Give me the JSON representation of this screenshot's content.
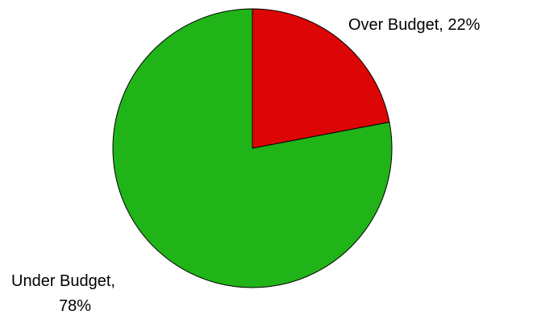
{
  "chart_data": {
    "type": "pie",
    "slices": [
      {
        "label": "Over Budget",
        "value": 22,
        "unit": "%",
        "color": "#dd0606"
      },
      {
        "label": "Under Budget",
        "value": 78,
        "unit": "%",
        "color": "#21b418"
      }
    ],
    "start": "12 o'clock",
    "direction": "clockwise",
    "legend": "none",
    "data_labels": [
      {
        "lines": [
          "Over Budget, 22%"
        ]
      },
      {
        "lines": [
          "Under Budget,",
          "78%"
        ]
      }
    ]
  }
}
